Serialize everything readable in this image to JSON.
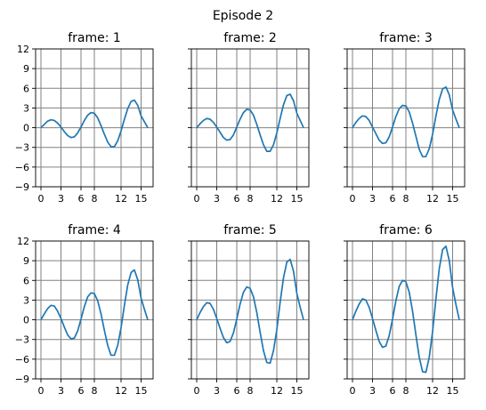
{
  "chart_data": {
    "type": "line",
    "title": "Episode 2",
    "layout": {
      "rows": 2,
      "cols": 3
    },
    "sharey": true,
    "xlim": [
      -0.8,
      16.8
    ],
    "ylim": [
      -9,
      12
    ],
    "xticks": [
      0,
      3,
      6,
      8,
      12,
      15
    ],
    "yticks": [
      -9,
      -6,
      -3,
      0,
      3,
      6,
      9,
      12
    ],
    "grid": true,
    "grid_color": "#808080",
    "line_color": "#1f77b4",
    "legend": "none",
    "x": [
      0,
      0.5,
      1,
      1.5,
      2,
      2.5,
      3,
      3.5,
      4,
      4.5,
      5,
      5.5,
      6,
      6.5,
      7,
      7.5,
      8,
      8.5,
      9,
      9.5,
      10,
      10.5,
      11,
      11.5,
      12,
      12.5,
      13,
      13.5,
      14,
      14.5,
      15,
      15.5,
      16
    ],
    "panels": [
      {
        "title": "frame: 1",
        "y": [
          0,
          0.5,
          1.0,
          1.2,
          1.1,
          0.7,
          0.1,
          -0.6,
          -1.2,
          -1.5,
          -1.4,
          -0.8,
          0.1,
          1.1,
          1.9,
          2.3,
          2.2,
          1.5,
          0.3,
          -1.0,
          -2.2,
          -2.9,
          -2.9,
          -2.0,
          -0.5,
          1.3,
          2.9,
          4.0,
          4.2,
          3.4,
          1.8,
          0.9,
          0
        ]
      },
      {
        "title": "frame: 2",
        "y": [
          0,
          0.6,
          1.1,
          1.4,
          1.3,
          0.8,
          0.1,
          -0.7,
          -1.5,
          -1.9,
          -1.8,
          -1.1,
          0.1,
          1.3,
          2.3,
          2.8,
          2.7,
          1.9,
          0.5,
          -1.1,
          -2.6,
          -3.6,
          -3.6,
          -2.6,
          -0.8,
          1.4,
          3.5,
          4.9,
          5.1,
          4.1,
          2.2,
          1.1,
          0
        ]
      },
      {
        "title": "frame: 3",
        "y": [
          0,
          0.8,
          1.4,
          1.8,
          1.7,
          1.1,
          0.1,
          -0.9,
          -1.9,
          -2.4,
          -2.3,
          -1.4,
          0.1,
          1.7,
          2.9,
          3.4,
          3.3,
          2.4,
          0.7,
          -1.3,
          -3.3,
          -4.4,
          -4.4,
          -3.2,
          -1.0,
          1.8,
          4.3,
          5.9,
          6.2,
          5.0,
          2.7,
          1.3,
          0
        ]
      },
      {
        "title": "frame: 4",
        "y": [
          0,
          0.9,
          1.7,
          2.2,
          2.1,
          1.3,
          0.2,
          -1.1,
          -2.3,
          -2.9,
          -2.8,
          -1.7,
          0.1,
          2.0,
          3.5,
          4.1,
          4.0,
          2.9,
          0.9,
          -1.6,
          -3.9,
          -5.4,
          -5.4,
          -3.9,
          -1.2,
          2.2,
          5.3,
          7.2,
          7.6,
          6.1,
          3.3,
          1.6,
          0
        ]
      },
      {
        "title": "frame: 5",
        "y": [
          0,
          1.1,
          2.0,
          2.6,
          2.5,
          1.6,
          0.2,
          -1.3,
          -2.7,
          -3.5,
          -3.3,
          -2.0,
          0.1,
          2.4,
          4.2,
          5.0,
          4.8,
          3.5,
          1.1,
          -1.9,
          -4.7,
          -6.5,
          -6.6,
          -4.7,
          -1.5,
          2.7,
          6.4,
          8.8,
          9.2,
          7.4,
          4.0,
          1.9,
          0
        ]
      },
      {
        "title": "frame: 6",
        "y": [
          0,
          1.3,
          2.4,
          3.2,
          3.0,
          1.9,
          0.2,
          -1.6,
          -3.3,
          -4.2,
          -4.0,
          -2.4,
          0.1,
          2.9,
          5.1,
          6.0,
          5.8,
          4.2,
          1.3,
          -2.3,
          -5.7,
          -7.9,
          -8.0,
          -5.7,
          -1.8,
          3.2,
          7.8,
          10.7,
          11.2,
          9.0,
          4.9,
          2.3,
          0
        ]
      }
    ]
  }
}
